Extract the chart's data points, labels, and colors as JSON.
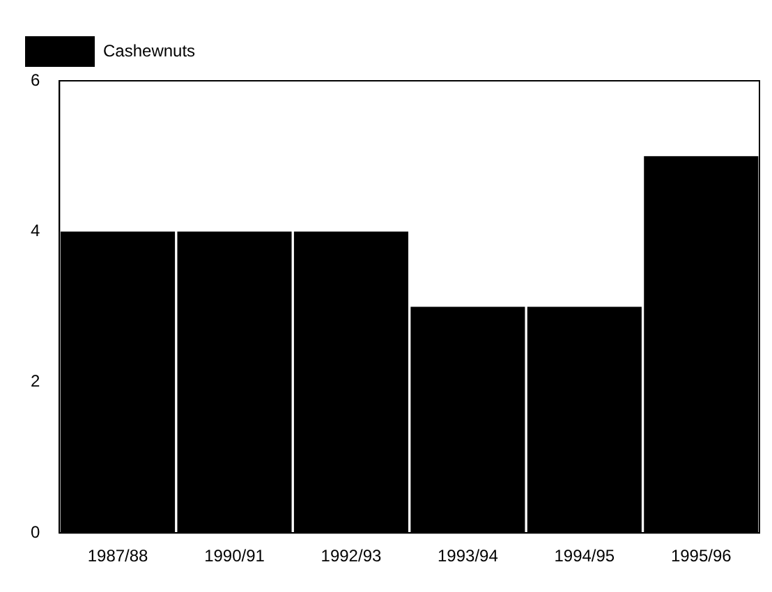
{
  "chart_data": {
    "type": "bar",
    "categories": [
      "1987/88",
      "1990/91",
      "1992/93",
      "1993/94",
      "1994/95",
      "1995/96"
    ],
    "series": [
      {
        "name": "Cashewnuts",
        "color": "#000000",
        "values": [
          4,
          4,
          4,
          3,
          3,
          5
        ]
      }
    ],
    "ylim": [
      0,
      6
    ],
    "yticks": [
      0,
      2,
      4,
      6
    ],
    "grid": false,
    "legend": "top left"
  }
}
